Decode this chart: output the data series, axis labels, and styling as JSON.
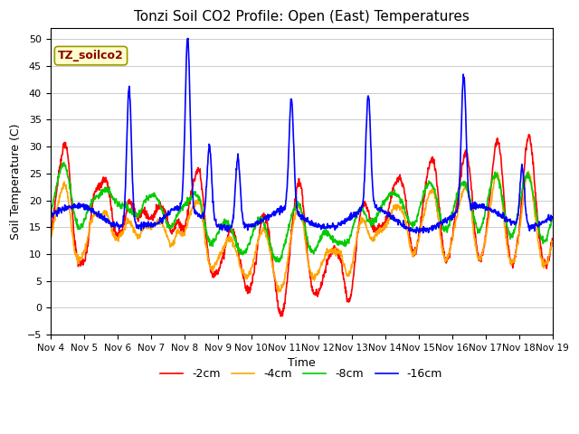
{
  "title": "Tonzi Soil CO2 Profile: Open (East) Temperatures",
  "xlabel": "Time",
  "ylabel": "Soil Temperature (C)",
  "ylim": [
    -5,
    52
  ],
  "yticks": [
    -5,
    0,
    5,
    10,
    15,
    20,
    25,
    30,
    35,
    40,
    45,
    50
  ],
  "annotation_text": "TZ_soilco2",
  "annotation_color": "#8B0000",
  "annotation_bg": "#FFFFCC",
  "annotation_border": "#999900",
  "bg_color": "#FFFFFF",
  "fig_bg": "#FFFFFF",
  "grid_color": "#CCCCCC",
  "line_colors": {
    "-2cm": "#FF0000",
    "-4cm": "#FFA500",
    "-8cm": "#00CC00",
    "-16cm": "#0000FF"
  },
  "line_width": 1.2,
  "x_labels": [
    "Nov 4",
    "Nov 5",
    "Nov 6",
    "Nov 7",
    "Nov 8",
    "Nov 9",
    "Nov 10",
    "Nov 11",
    "Nov 12",
    "Nov 13",
    "Nov 14",
    "Nov 15",
    "Nov 16",
    "Nov 17",
    "Nov 18",
    "Nov 19"
  ],
  "legend_labels": [
    "-2cm",
    "-4cm",
    "-8cm",
    "-16cm"
  ]
}
